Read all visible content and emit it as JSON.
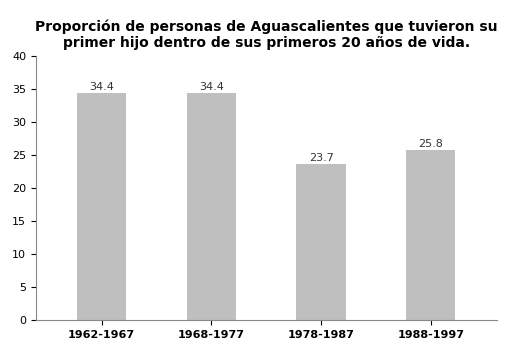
{
  "chart_data": {
    "type": "bar",
    "title": "Proporción de personas de Aguascalientes que tuvieron su primer hijo dentro de sus primeros 20 años de vida.",
    "categories": [
      "1962-1967",
      "1968-1977",
      "1978-1987",
      "1988-1997"
    ],
    "values": [
      34.4,
      34.4,
      23.7,
      25.8
    ],
    "color": "#bfbfbf",
    "ylim": [
      0,
      40
    ],
    "yticks": [
      0,
      5,
      10,
      15,
      20,
      25,
      30,
      35,
      40
    ],
    "grid": false,
    "data_labels": true
  }
}
